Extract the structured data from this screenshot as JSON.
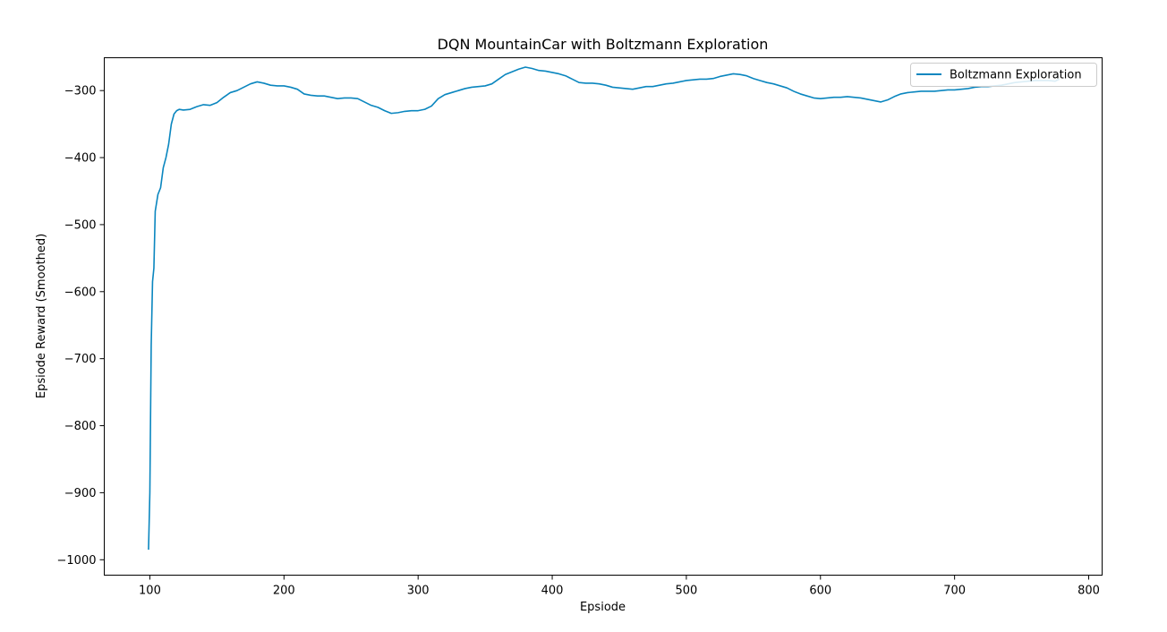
{
  "chart_data": {
    "type": "line",
    "title": "DQN MountainCar with Boltzmann Exploration",
    "xlabel": "Epsiode",
    "ylabel": "Epsiode Reward (Smoothed)",
    "xlim": [
      66,
      810
    ],
    "ylim": [
      -1023,
      -251
    ],
    "xticks": [
      100,
      200,
      300,
      400,
      500,
      600,
      700,
      800
    ],
    "yticks": [
      -1000,
      -900,
      -800,
      -700,
      -600,
      -500,
      -400,
      -300
    ],
    "xtick_labels": [
      "100",
      "200",
      "300",
      "400",
      "500",
      "600",
      "700",
      "800"
    ],
    "ytick_labels": [
      "−1000",
      "−900",
      "−800",
      "−700",
      "−600",
      "−500",
      "−400",
      "−300"
    ],
    "grid": false,
    "legend": {
      "position": "top-right"
    },
    "series": [
      {
        "name": "Boltzmann Exploration",
        "color": "#0a86bf",
        "x": [
          99,
          100,
          101,
          102,
          103,
          104,
          106,
          108,
          110,
          112,
          114,
          116,
          118,
          120,
          122,
          125,
          130,
          135,
          140,
          145,
          150,
          155,
          160,
          165,
          170,
          175,
          180,
          185,
          190,
          195,
          200,
          205,
          210,
          215,
          220,
          225,
          230,
          235,
          240,
          245,
          250,
          255,
          260,
          265,
          270,
          275,
          280,
          285,
          290,
          295,
          300,
          305,
          310,
          315,
          320,
          325,
          330,
          335,
          340,
          345,
          350,
          355,
          360,
          365,
          370,
          375,
          380,
          385,
          390,
          395,
          400,
          405,
          410,
          415,
          420,
          425,
          430,
          435,
          440,
          445,
          450,
          455,
          460,
          465,
          470,
          475,
          480,
          485,
          490,
          495,
          500,
          505,
          510,
          515,
          520,
          525,
          530,
          535,
          540,
          545,
          550,
          555,
          560,
          565,
          570,
          575,
          580,
          585,
          590,
          595,
          600,
          605,
          610,
          615,
          620,
          625,
          630,
          635,
          640,
          645,
          650,
          655,
          660,
          665,
          670,
          675,
          680,
          685,
          690,
          695,
          700,
          705,
          710,
          715,
          720,
          725,
          730,
          735,
          740,
          745,
          750,
          755,
          760,
          765,
          770,
          775,
          778
        ],
        "values": [
          -985,
          -900,
          -680,
          -585,
          -565,
          -480,
          -455,
          -445,
          -415,
          -400,
          -380,
          -350,
          -335,
          -330,
          -328,
          -329,
          -328,
          -324,
          -321,
          -322,
          -318,
          -310,
          -303,
          -300,
          -295,
          -290,
          -287,
          -289,
          -292,
          -293,
          -293,
          -295,
          -298,
          -305,
          -307,
          -308,
          -308,
          -310,
          -312,
          -311,
          -311,
          -312,
          -317,
          -322,
          -325,
          -330,
          -334,
          -333,
          -331,
          -330,
          -330,
          -328,
          -323,
          -312,
          -306,
          -303,
          -300,
          -297,
          -295,
          -294,
          -293,
          -290,
          -283,
          -276,
          -272,
          -268,
          -265,
          -267,
          -270,
          -271,
          -273,
          -275,
          -278,
          -283,
          -288,
          -289,
          -289,
          -290,
          -292,
          -295,
          -296,
          -297,
          -298,
          -296,
          -294,
          -294,
          -292,
          -290,
          -289,
          -287,
          -285,
          -284,
          -283,
          -283,
          -282,
          -279,
          -277,
          -275,
          -276,
          -278,
          -282,
          -285,
          -288,
          -290,
          -293,
          -296,
          -301,
          -305,
          -308,
          -311,
          -312,
          -311,
          -310,
          -310,
          -309,
          -310,
          -311,
          -313,
          -315,
          -317,
          -314,
          -309,
          -305,
          -303,
          -302,
          -301,
          -301,
          -301,
          -300,
          -299,
          -299,
          -298,
          -297,
          -295,
          -294,
          -294,
          -293,
          -292,
          -290,
          -288,
          -287,
          -286,
          -285,
          -285,
          -285,
          -286,
          -283
        ]
      }
    ]
  }
}
